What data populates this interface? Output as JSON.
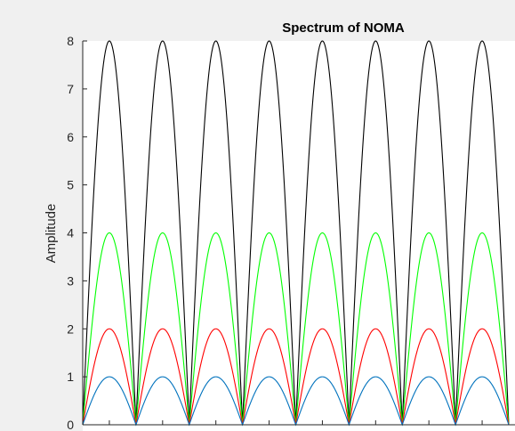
{
  "chart_data": {
    "type": "line",
    "title": "Spectrum of NOMA",
    "xlabel": "",
    "ylabel": "Amplitude",
    "ylim": [
      0,
      8
    ],
    "y_ticks": [
      0,
      1,
      2,
      3,
      4,
      5,
      6,
      7,
      8
    ],
    "y_tick_labels": [
      "0",
      "1",
      "2",
      "3",
      "4",
      "5",
      "6",
      "7",
      "8"
    ],
    "x_domain": [
      0,
      8
    ],
    "x_ticks": [
      0.5,
      1.5,
      2.5,
      3.5,
      4.5,
      5.5,
      6.5,
      7.5
    ],
    "x_tick_labels": [],
    "grid": false,
    "legend": "none",
    "arch_count": 8,
    "series": [
      {
        "color": "#000000",
        "peak": 8
      },
      {
        "color": "#00ff00",
        "peak": 4
      },
      {
        "color": "#ff0000",
        "peak": 2
      },
      {
        "color": "#0072bd",
        "peak": 1
      }
    ]
  }
}
